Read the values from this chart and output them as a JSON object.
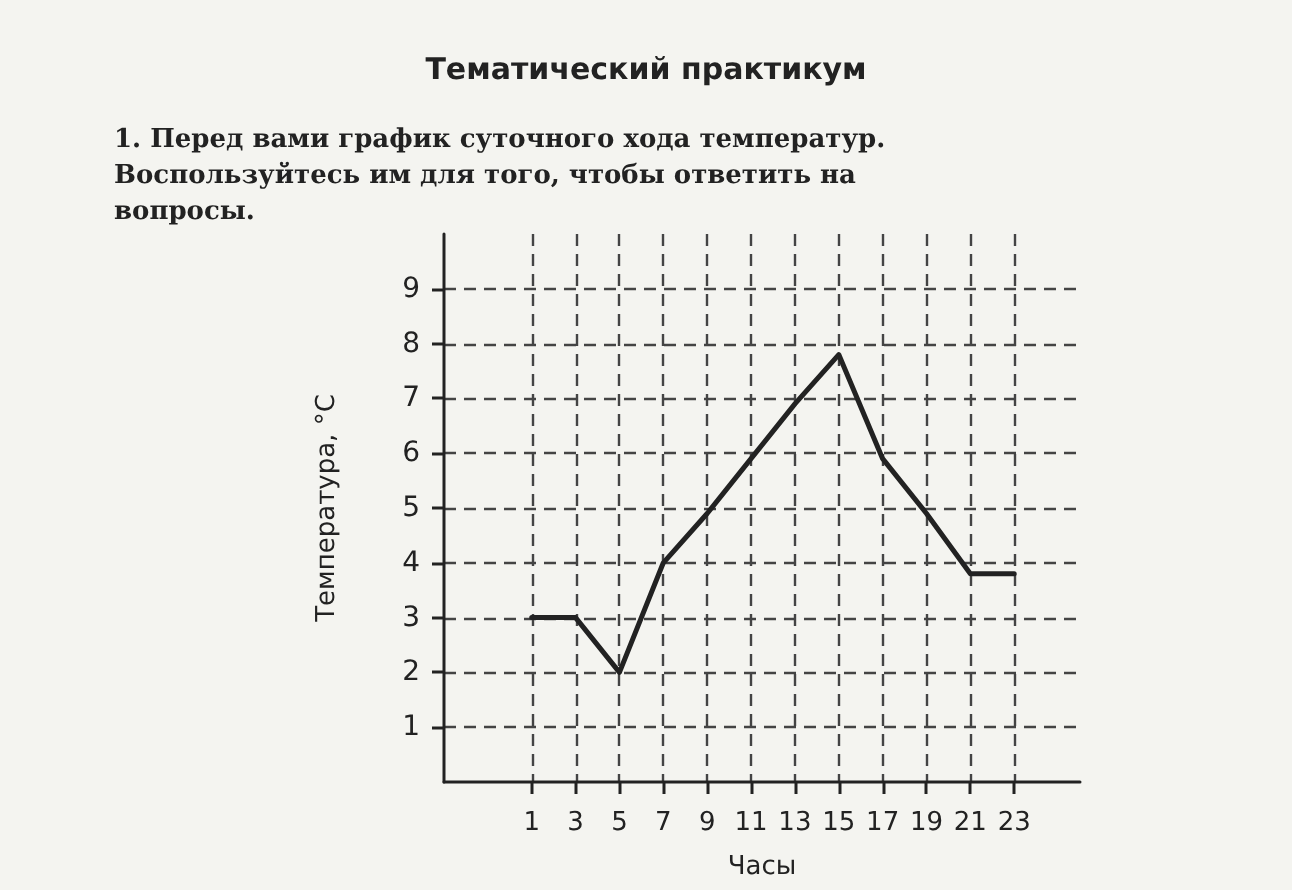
{
  "chart_data": {
    "type": "line",
    "title": "Тематический практикум",
    "subtitle": "1. Перед вами график суточного хода температур. Воспользуйтесь им для того, чтобы ответить на вопросы.",
    "xlabel": "Часы",
    "ylabel": "Температура, °C",
    "x": [
      1,
      3,
      5,
      7,
      9,
      11,
      13,
      15,
      17,
      19,
      21,
      23
    ],
    "series": [
      {
        "color": "#222222",
        "values": [
          3,
          3,
          2,
          4,
          4.9,
          5.9,
          6.9,
          7.8,
          5.9,
          4.9,
          3.8,
          3.8
        ]
      }
    ],
    "xlim": [
      -3,
      26
    ],
    "xticks": [
      1,
      3,
      5,
      7,
      9,
      11,
      13,
      15,
      17,
      19,
      21,
      23
    ],
    "ylim": [
      0,
      10
    ],
    "yticks": [
      1,
      2,
      3,
      4,
      5,
      6,
      7,
      8,
      9
    ],
    "grid": true,
    "marker": "none",
    "line_style": "solid"
  }
}
